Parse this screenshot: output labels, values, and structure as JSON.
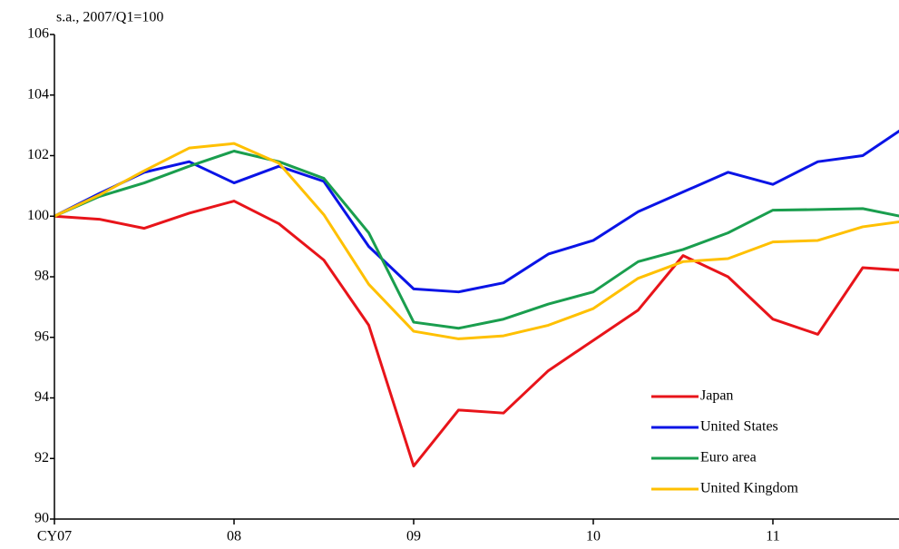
{
  "chart_data": {
    "type": "line",
    "subtitle": "s.a., 2007/Q1=100",
    "categories": [
      "CY07",
      null,
      null,
      null,
      "08",
      null,
      null,
      null,
      "09",
      null,
      null,
      null,
      "10",
      null,
      null,
      null,
      "11",
      null,
      null,
      null
    ],
    "series": [
      {
        "name": "Japan",
        "color": "#e8141a",
        "values": [
          100,
          99.9,
          99.6,
          100.1,
          100.5,
          99.75,
          98.55,
          96.4,
          91.75,
          93.6,
          93.5,
          94.9,
          95.9,
          96.9,
          98.7,
          98.0,
          96.6,
          96.1,
          98.3,
          98.2
        ]
      },
      {
        "name": "United States",
        "color": "#0a14e6",
        "values": [
          100,
          100.75,
          101.45,
          101.8,
          101.1,
          101.65,
          101.15,
          99.0,
          97.6,
          97.5,
          97.8,
          98.75,
          99.2,
          100.15,
          100.8,
          101.45,
          101.05,
          101.8,
          102.0,
          103.0
        ]
      },
      {
        "name": "Euro area",
        "color": "#1a9e4e",
        "values": [
          100,
          100.65,
          101.1,
          101.65,
          102.15,
          101.8,
          101.25,
          99.45,
          96.5,
          96.3,
          96.6,
          97.1,
          97.5,
          98.5,
          98.9,
          99.45,
          100.2,
          100.22,
          100.25,
          99.95
        ]
      },
      {
        "name": "United Kingdom",
        "color": "#ffc000",
        "values": [
          100,
          100.7,
          101.5,
          102.25,
          102.4,
          101.75,
          100.05,
          97.75,
          96.2,
          95.95,
          96.05,
          96.4,
          96.95,
          97.95,
          98.5,
          98.6,
          99.15,
          99.2,
          99.65,
          99.85
        ]
      }
    ],
    "ylim": [
      90,
      106
    ],
    "yticks": [
      90,
      92,
      94,
      96,
      98,
      100,
      102,
      104,
      106
    ],
    "grid": false,
    "legend": "lower right"
  }
}
